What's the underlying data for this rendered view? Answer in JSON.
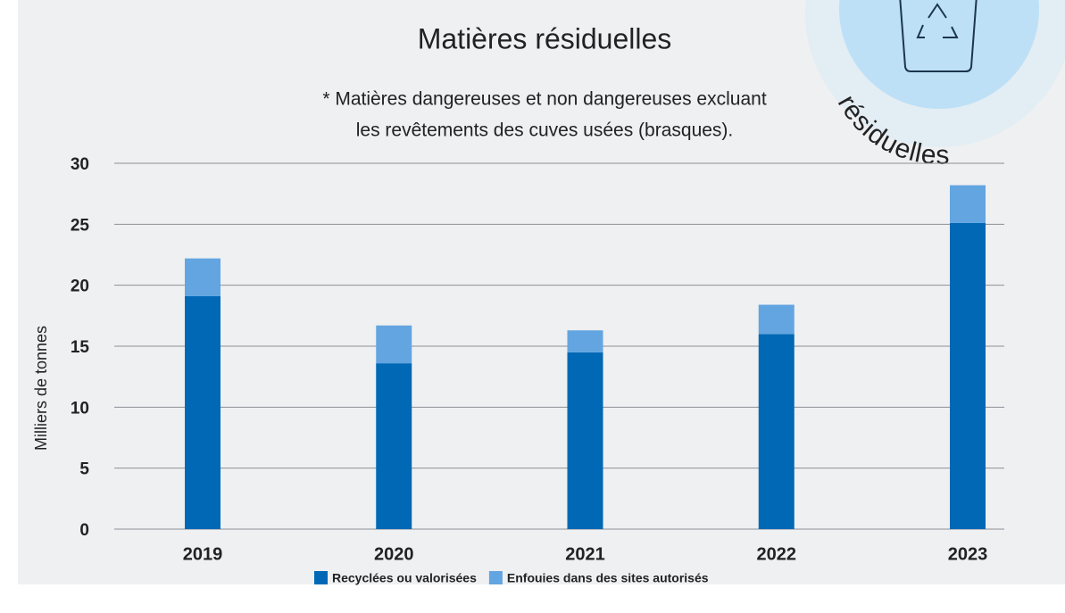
{
  "chart_data": {
    "type": "stacked_bar",
    "title": "Matières résiduelles",
    "subtitle": [
      "* Matières dangereuses et non dangereuses excluant",
      "les revêtements des cuves usées (brasques)."
    ],
    "annotations": [
      "résiduelles"
    ],
    "y_label": "Milliers de tonnes",
    "categories": [
      "2019",
      "2020",
      "2021",
      "2022",
      "2023"
    ],
    "series": [
      {
        "name": "Recyclées ou valorisées",
        "color": "#0068b5",
        "values": [
          19.1,
          13.6,
          14.5,
          16.0,
          25.1
        ]
      },
      {
        "name": "Enfouies dans des sites autorisés",
        "color": "#63a5e0",
        "values": [
          3.1,
          3.1,
          1.8,
          2.4,
          3.1
        ]
      }
    ],
    "ylim": [
      0,
      30
    ],
    "yticks": [
      0,
      5,
      10,
      15,
      20,
      25,
      30
    ],
    "grid": true
  }
}
